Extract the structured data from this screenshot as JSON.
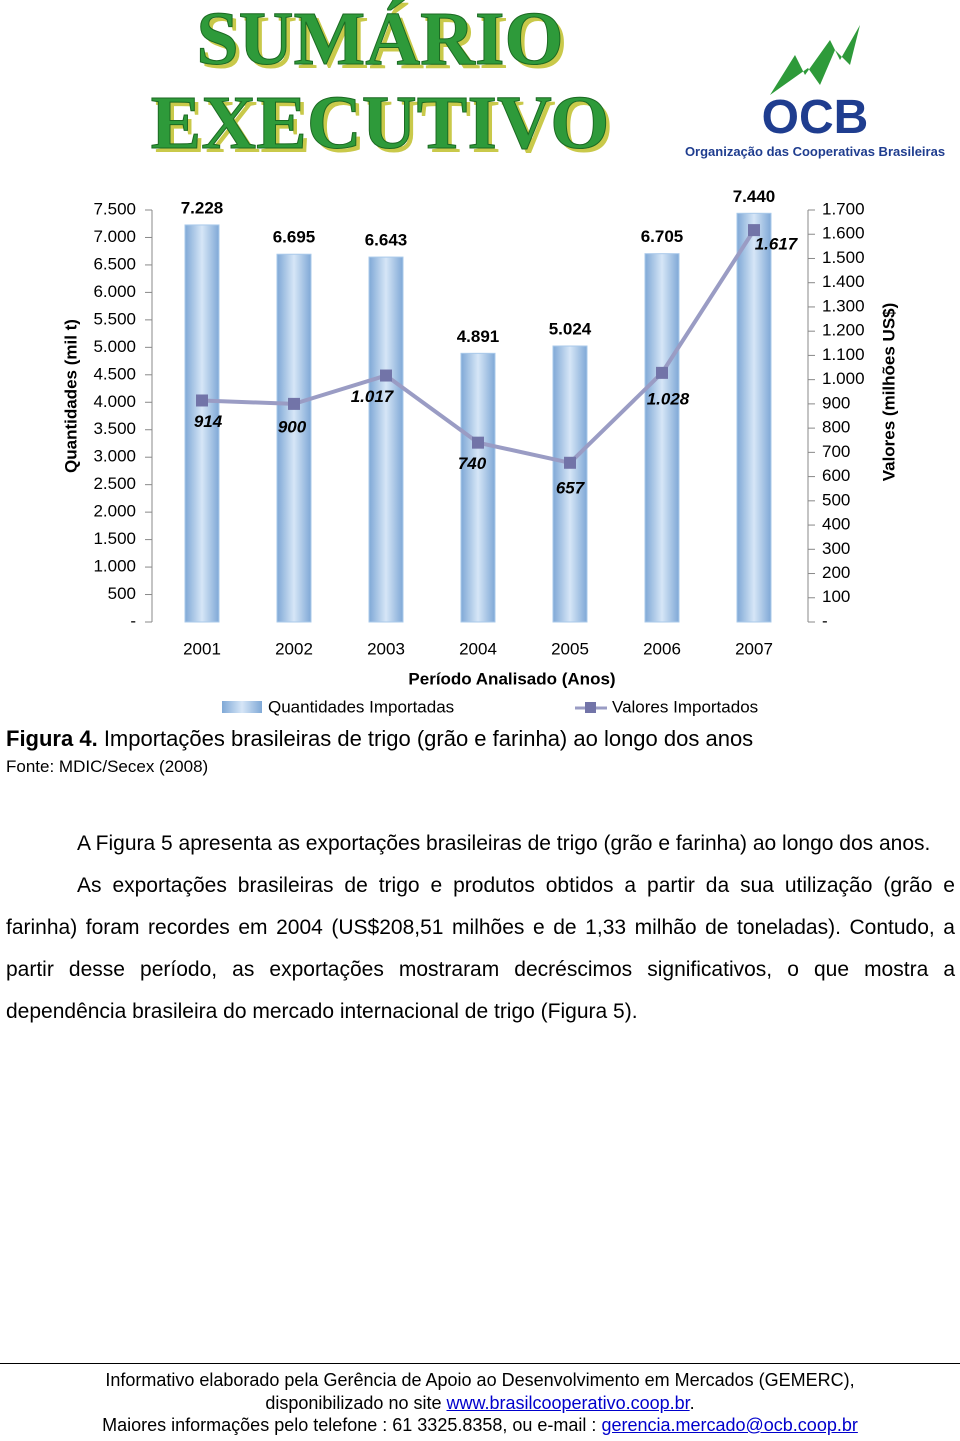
{
  "header": {
    "title_line1": "SUMÁRIO",
    "title_line2": "EXECUTIVO",
    "logo": "OCB",
    "org": "Organização das Cooperativas Brasileiras"
  },
  "chart_data": {
    "type": "bar",
    "categories": [
      "2001",
      "2002",
      "2003",
      "2004",
      "2005",
      "2006",
      "2007"
    ],
    "x_label": "Período Analisado (Anos)",
    "y_label": "Quantidades (mil t)",
    "y2_label": "Valores (milhões US$)",
    "series": [
      {
        "name": "Quantidades Importadas",
        "color": "#a9c9ea",
        "values": [
          7228,
          6695,
          6643,
          4891,
          5024,
          6705,
          7440
        ],
        "value_labels": [
          "7.228",
          "6.695",
          "6.643",
          "4.891",
          "5.024",
          "6.705",
          "7.440"
        ]
      },
      {
        "name": "Valores Importados",
        "color": "#9a9cc4",
        "axis": "y2",
        "values": [
          914,
          900,
          1017,
          740,
          657,
          1028,
          1617
        ],
        "value_labels": [
          "914",
          "900",
          "1.017",
          "740",
          "657",
          "1.028",
          "1.617"
        ]
      }
    ],
    "ylim": [
      0,
      7500
    ],
    "yticks": [
      {
        "value": 0,
        "label": "-"
      },
      500,
      {
        "value": 1000,
        "label": "1.000"
      },
      {
        "value": 1500,
        "label": "1.500"
      },
      {
        "value": 2000,
        "label": "2.000"
      },
      {
        "value": 2500,
        "label": "2.500"
      },
      {
        "value": 3000,
        "label": "3.000"
      },
      {
        "value": 3500,
        "label": "3.500"
      },
      {
        "value": 4000,
        "label": "4.000"
      },
      {
        "value": 4500,
        "label": "4.500"
      },
      {
        "value": 5000,
        "label": "5.000"
      },
      {
        "value": 5500,
        "label": "5.500"
      },
      {
        "value": 6000,
        "label": "6.000"
      },
      {
        "value": 6500,
        "label": "6.500"
      },
      {
        "value": 7000,
        "label": "7.000"
      },
      {
        "value": 7500,
        "label": "7.500"
      }
    ],
    "y2lim": [
      0,
      1700
    ],
    "y2ticks": [
      {
        "value": 0,
        "label": "-"
      },
      100,
      200,
      300,
      400,
      500,
      600,
      700,
      800,
      900,
      {
        "value": 1000,
        "label": "1.000"
      },
      {
        "value": 1100,
        "label": "1.100"
      },
      {
        "value": 1200,
        "label": "1.200"
      },
      {
        "value": 1300,
        "label": "1.300"
      },
      {
        "value": 1400,
        "label": "1.400"
      },
      {
        "value": 1500,
        "label": "1.500"
      },
      {
        "value": 1600,
        "label": "1.600"
      },
      {
        "value": 1700,
        "label": "1.700"
      }
    ],
    "grid": false
  },
  "figure": {
    "label": "Figura 4.",
    "caption": "Importações brasileiras de trigo (grão e farinha) ao longo dos anos",
    "source": "Fonte: MDIC/Secex (2008)"
  },
  "body": {
    "paragraphs": [
      "A Figura 5 apresenta as exportações brasileiras de trigo (grão e farinha) ao longo dos anos.",
      "As exportações brasileiras de trigo e produtos obtidos a partir da sua utilização (grão e farinha) foram recordes em 2004 (US$208,51 milhões e de 1,33 milhão de toneladas). Contudo, a partir desse período, as exportações mostraram decréscimos significativos, o que mostra a dependência brasileira do mercado internacional de trigo (Figura 5)."
    ]
  },
  "footer": {
    "line1": "Informativo elaborado pela Gerência de Apoio ao Desenvolvimento em Mercados (GEMERC),",
    "line2_prefix": "disponibilizado no site",
    "site": "www.brasilcooperativo.coop.br",
    "line2_suffix": ".",
    "line3_prefix": "Maiores informações pelo telefone : 61 3325.8358, ou e-mail :",
    "email": "gerencia.mercado@ocb.coop.br"
  }
}
